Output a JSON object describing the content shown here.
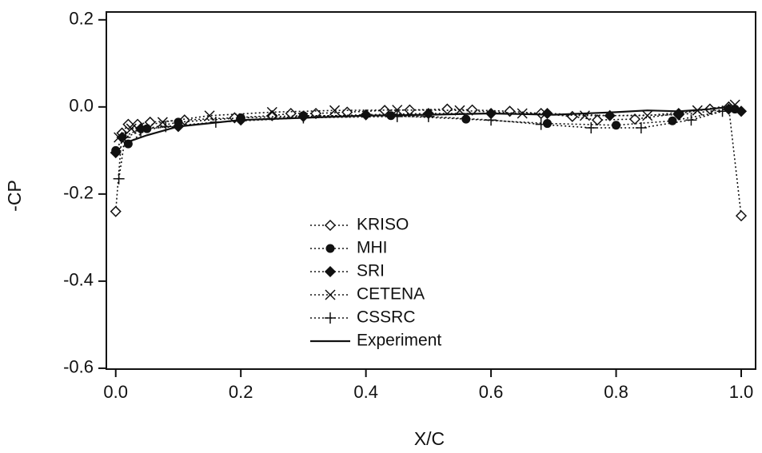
{
  "chart_data": {
    "type": "line",
    "x_label": "X/C",
    "y_label": "-CP",
    "xlim": [
      -0.015,
      1.023
    ],
    "ylim": [
      -0.602,
      0.218
    ],
    "xticks": [
      {
        "value": 0,
        "label": "0.0"
      },
      0.2,
      0.4,
      0.6,
      0.8,
      {
        "value": 1,
        "label": "1.0"
      }
    ],
    "yticks": [
      0.2,
      {
        "value": 0,
        "label": "0.0"
      },
      -0.2,
      -0.4,
      -0.6
    ],
    "series": [
      {
        "name": "KRISO",
        "color": "#111111",
        "marker": "open-diamond",
        "dash": "dotted",
        "x": [
          0.0,
          0.01,
          0.02,
          0.035,
          0.055,
          0.11,
          0.19,
          0.25,
          0.28,
          0.32,
          0.37,
          0.43,
          0.47,
          0.53,
          0.57,
          0.63,
          0.68,
          0.73,
          0.77,
          0.83,
          0.9,
          0.95,
          0.98,
          1.0
        ],
        "values": [
          -0.24,
          -0.06,
          -0.04,
          -0.04,
          -0.035,
          -0.03,
          -0.025,
          -0.02,
          -0.015,
          -0.015,
          -0.012,
          -0.008,
          -0.007,
          -0.005,
          -0.007,
          -0.01,
          -0.015,
          -0.022,
          -0.03,
          -0.028,
          -0.015,
          -0.005,
          0.0,
          -0.25
        ]
      },
      {
        "name": "MHI",
        "color": "#111111",
        "marker": "filled-circle",
        "dash": "dotted",
        "x": [
          0.0,
          0.02,
          0.05,
          0.1,
          0.2,
          0.3,
          0.44,
          0.56,
          0.69,
          0.8,
          0.89,
          0.99
        ],
        "values": [
          -0.1,
          -0.085,
          -0.05,
          -0.035,
          -0.025,
          -0.02,
          -0.02,
          -0.028,
          -0.038,
          -0.042,
          -0.032,
          -0.005
        ]
      },
      {
        "name": "SRI",
        "color": "#111111",
        "marker": "filled-diamond",
        "dash": "dotted",
        "x": [
          0.0,
          0.01,
          0.04,
          0.1,
          0.2,
          0.3,
          0.4,
          0.5,
          0.6,
          0.69,
          0.79,
          0.9,
          0.98,
          1.0
        ],
        "values": [
          -0.105,
          -0.07,
          -0.05,
          -0.045,
          -0.03,
          -0.022,
          -0.018,
          -0.015,
          -0.015,
          -0.015,
          -0.02,
          -0.018,
          -0.005,
          -0.01
        ]
      },
      {
        "name": "CETENA",
        "color": "#111111",
        "marker": "x",
        "dash": "dotted",
        "x": [
          0.005,
          0.025,
          0.075,
          0.15,
          0.25,
          0.35,
          0.45,
          0.55,
          0.65,
          0.75,
          0.85,
          0.93,
          0.99
        ],
        "values": [
          -0.07,
          -0.05,
          -0.035,
          -0.02,
          -0.012,
          -0.008,
          -0.007,
          -0.008,
          -0.015,
          -0.02,
          -0.02,
          -0.008,
          0.005
        ]
      },
      {
        "name": "CSSRC",
        "color": "#111111",
        "marker": "plus",
        "dash": "dotted",
        "x": [
          0.005,
          0.015,
          0.04,
          0.08,
          0.16,
          0.3,
          0.45,
          0.5,
          0.6,
          0.68,
          0.76,
          0.84,
          0.92,
          0.97
        ],
        "values": [
          -0.165,
          -0.07,
          -0.055,
          -0.045,
          -0.035,
          -0.025,
          -0.022,
          -0.022,
          -0.03,
          -0.04,
          -0.048,
          -0.048,
          -0.03,
          -0.01
        ]
      },
      {
        "name": "Experiment",
        "color": "#111111",
        "marker": "none",
        "dash": "solid",
        "x": [
          0.02,
          0.05,
          0.1,
          0.2,
          0.3,
          0.4,
          0.5,
          0.6,
          0.7,
          0.8,
          0.85,
          0.9,
          0.95,
          0.98
        ],
        "values": [
          -0.08,
          -0.065,
          -0.045,
          -0.03,
          -0.025,
          -0.02,
          -0.018,
          -0.015,
          -0.018,
          -0.012,
          -0.008,
          -0.01,
          -0.005,
          0.0
        ]
      }
    ]
  }
}
